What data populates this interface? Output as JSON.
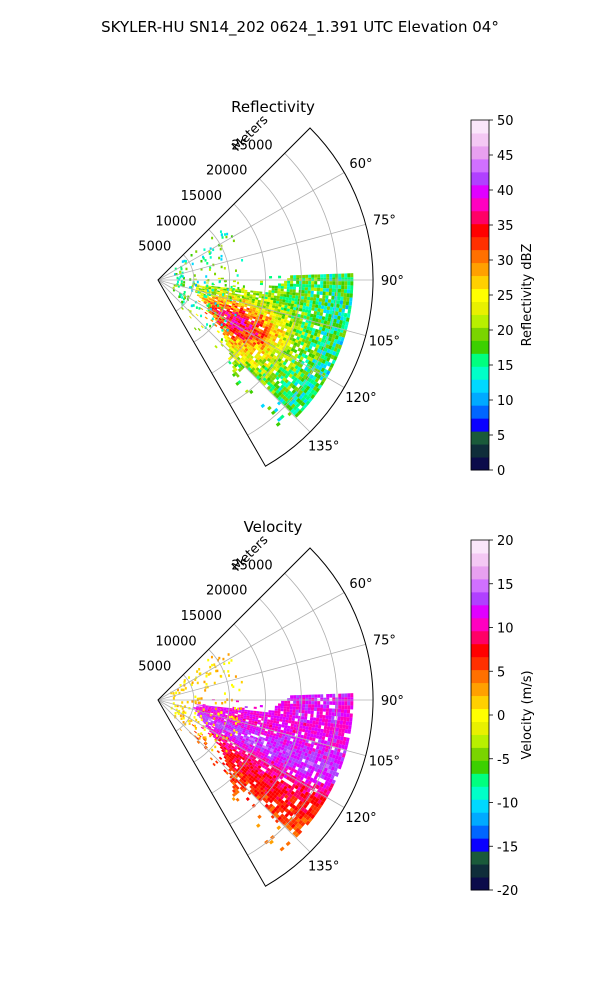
{
  "figure": {
    "suptitle": "SKYLER-HU  SN14_202  0624_1.391 UTC Elevation 04°"
  },
  "chart_data": [
    {
      "type": "heatmap",
      "projection": "polar-sector",
      "title": "Reflectivity",
      "range_label": "Meters",
      "range_ticks": [
        5000,
        10000,
        15000,
        20000,
        25000
      ],
      "range_max": 30000,
      "azimuth_range_deg": [
        45,
        150
      ],
      "azimuth_ticks": [
        60,
        75,
        90,
        105,
        120,
        135
      ],
      "azimuth_tick_labels": [
        "60°",
        "75°",
        "90°",
        "105°",
        "120°",
        "135°"
      ],
      "grid": true,
      "colorbar": {
        "label": "Reflectivity dBZ",
        "min": 0,
        "max": 50,
        "ticks": [
          0,
          5,
          10,
          15,
          20,
          25,
          30,
          35,
          40,
          45,
          50
        ],
        "colors": [
          "#0b0b4a",
          "#0f2d3a",
          "#1a5a3a",
          "#0a00ff",
          "#0066ff",
          "#00aaff",
          "#00d8ff",
          "#00ffc8",
          "#00ff7f",
          "#3cd000",
          "#7ad400",
          "#b8f000",
          "#e8f000",
          "#ffff00",
          "#ffd000",
          "#ffa000",
          "#ff7000",
          "#ff3000",
          "#ff0000",
          "#ff0066",
          "#ff00c0",
          "#e000ff",
          "#b040ff",
          "#d070ff",
          "#e8a0f0",
          "#f4c8f4",
          "#fbe6fb"
        ]
      },
      "echo": {
        "main_cell": {
          "azimuth_deg": [
            88,
            142
          ],
          "range_m": [
            5000,
            27000
          ]
        },
        "core_values": {
          "reflectivity_dbz_range": [
            20,
            45
          ]
        },
        "scattered_near_range_m": [
          2000,
          12000
        ]
      }
    },
    {
      "type": "heatmap",
      "projection": "polar-sector",
      "title": "Velocity",
      "range_label": "Meters",
      "range_ticks": [
        5000,
        10000,
        15000,
        20000,
        25000
      ],
      "range_max": 30000,
      "azimuth_range_deg": [
        45,
        150
      ],
      "azimuth_ticks": [
        60,
        75,
        90,
        105,
        120,
        135
      ],
      "azimuth_tick_labels": [
        "60°",
        "75°",
        "90°",
        "105°",
        "120°",
        "135°"
      ],
      "grid": true,
      "colorbar": {
        "label": "Velocity (m/s)",
        "min": -20,
        "max": 20,
        "ticks": [
          -20,
          -15,
          -10,
          -5,
          0,
          5,
          10,
          15,
          20
        ],
        "colors": [
          "#0b0b4a",
          "#0f2d3a",
          "#1a5a3a",
          "#0a00ff",
          "#0066ff",
          "#00aaff",
          "#00d8ff",
          "#00ffc8",
          "#00ff7f",
          "#3cd000",
          "#7ad400",
          "#b8f000",
          "#e8f000",
          "#ffff00",
          "#ffd000",
          "#ffa000",
          "#ff7000",
          "#ff3000",
          "#ff0000",
          "#ff0066",
          "#ff00c0",
          "#e000ff",
          "#b040ff",
          "#d070ff",
          "#e8a0f0",
          "#f4c8f4",
          "#fbe6fb"
        ]
      },
      "echo": {
        "main_cell": {
          "azimuth_deg": [
            88,
            142
          ],
          "range_m": [
            5000,
            27000
          ]
        },
        "core_values": {
          "velocity_ms_range": [
            0,
            15
          ]
        },
        "scattered_near_range_m": [
          2000,
          12000
        ]
      }
    }
  ]
}
